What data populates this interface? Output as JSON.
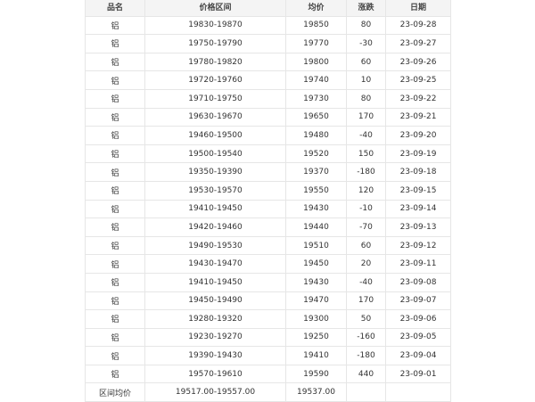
{
  "table": {
    "header": [
      "品名",
      "价格区间",
      "均价",
      "涨跌",
      "日期"
    ],
    "rows": [
      [
        "铝",
        "19830-19870",
        19850,
        80,
        "23-09-28"
      ],
      [
        "铝",
        "19750-19790",
        19770,
        -30,
        "23-09-27"
      ],
      [
        "铝",
        "19780-19820",
        19800,
        60,
        "23-09-26"
      ],
      [
        "铝",
        "19720-19760",
        19740,
        10,
        "23-09-25"
      ],
      [
        "铝",
        "19710-19750",
        19730,
        80,
        "23-09-22"
      ],
      [
        "铝",
        "19630-19670",
        19650,
        170,
        "23-09-21"
      ],
      [
        "铝",
        "19460-19500",
        19480,
        -40,
        "23-09-20"
      ],
      [
        "铝",
        "19500-19540",
        19520,
        150,
        "23-09-19"
      ],
      [
        "铝",
        "19350-19390",
        19370,
        -180,
        "23-09-18"
      ],
      [
        "铝",
        "19530-19570",
        19550,
        120,
        "23-09-15"
      ],
      [
        "铝",
        "19410-19450",
        19430,
        -10,
        "23-09-14"
      ],
      [
        "铝",
        "19420-19460",
        19440,
        -70,
        "23-09-13"
      ],
      [
        "铝",
        "19490-19530",
        19510,
        60,
        "23-09-12"
      ],
      [
        "铝",
        "19430-19470",
        19450,
        20,
        "23-09-11"
      ],
      [
        "铝",
        "19410-19450",
        19430,
        -40,
        "23-09-08"
      ],
      [
        "铝",
        "19450-19490",
        19470,
        170,
        "23-09-07"
      ],
      [
        "铝",
        "19280-19320",
        19300,
        50,
        "23-09-06"
      ],
      [
        "铝",
        "19230-19270",
        19250,
        -160,
        "23-09-05"
      ],
      [
        "铝",
        "19390-19430",
        19410,
        -180,
        "23-09-04"
      ],
      [
        "铝",
        "19570-19610",
        19590,
        440,
        "23-09-01"
      ]
    ],
    "summary": [
      "区间均价",
      "19517.00-19557.00",
      "19537.00"
    ]
  }
}
